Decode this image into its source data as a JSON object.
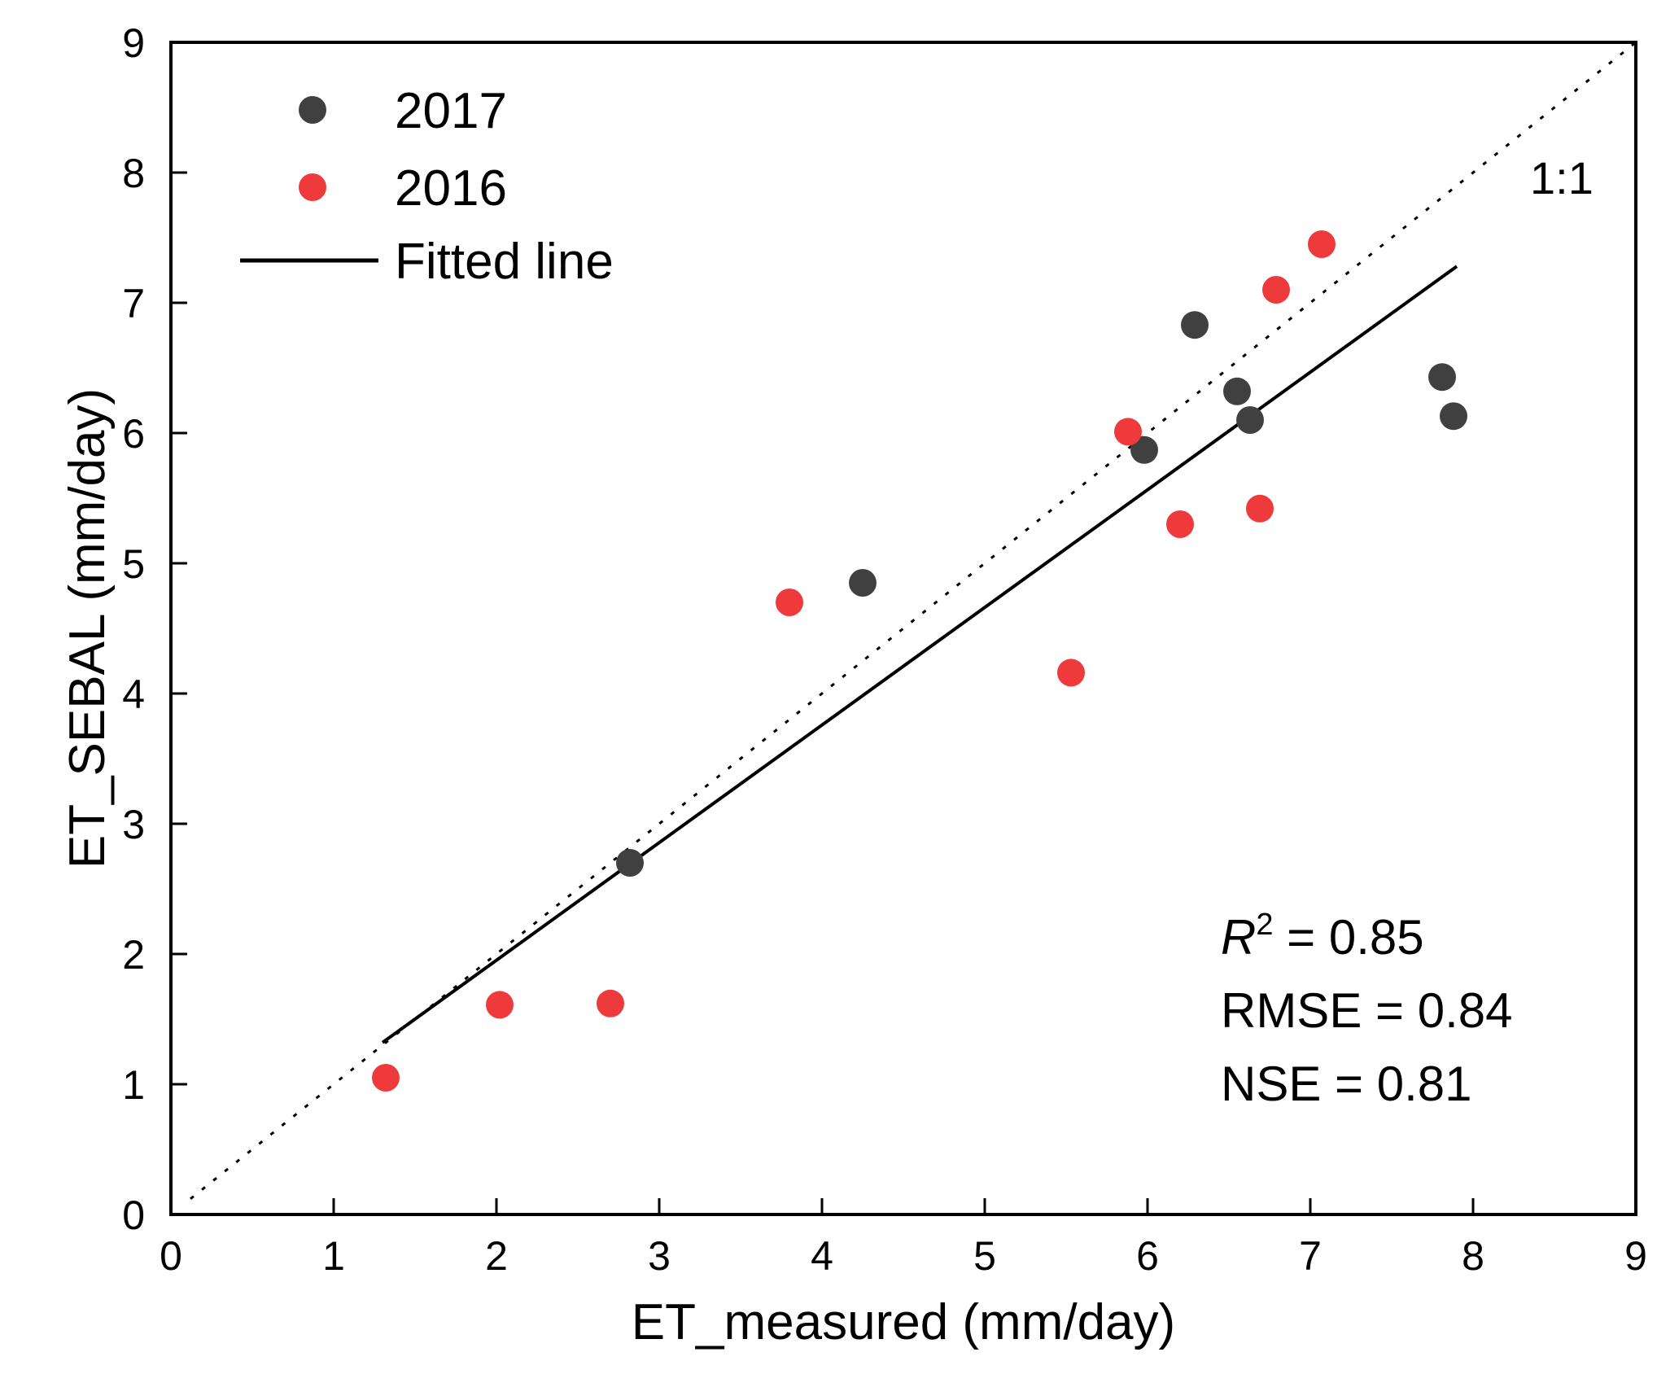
{
  "chart_data": {
    "type": "scatter",
    "title": "",
    "xlabel": "ET_measured (mm/day)",
    "ylabel": "ET_SEBAL (mm/day)",
    "xlim": [
      0,
      9
    ],
    "ylim": [
      0,
      9
    ],
    "xticks": [
      0,
      1,
      2,
      3,
      4,
      5,
      6,
      7,
      8,
      9
    ],
    "yticks": [
      0,
      1,
      2,
      3,
      4,
      5,
      6,
      7,
      8,
      9
    ],
    "grid": false,
    "legend_position": "top-left",
    "series": [
      {
        "name": "2017",
        "color": "#404040",
        "points": [
          {
            "x": 2.82,
            "y": 2.7
          },
          {
            "x": 4.25,
            "y": 4.85
          },
          {
            "x": 5.98,
            "y": 5.87
          },
          {
            "x": 6.29,
            "y": 6.83
          },
          {
            "x": 6.55,
            "y": 6.32
          },
          {
            "x": 6.63,
            "y": 6.1
          },
          {
            "x": 7.81,
            "y": 6.43
          },
          {
            "x": 7.88,
            "y": 6.13
          }
        ]
      },
      {
        "name": "2016",
        "color": "#ee3a3a",
        "points": [
          {
            "x": 1.32,
            "y": 1.05
          },
          {
            "x": 2.02,
            "y": 1.61
          },
          {
            "x": 2.7,
            "y": 1.62
          },
          {
            "x": 3.8,
            "y": 4.7
          },
          {
            "x": 5.53,
            "y": 4.16
          },
          {
            "x": 5.88,
            "y": 6.01
          },
          {
            "x": 6.2,
            "y": 5.3
          },
          {
            "x": 6.69,
            "y": 5.42
          },
          {
            "x": 6.79,
            "y": 7.1
          },
          {
            "x": 7.07,
            "y": 7.45
          }
        ]
      }
    ],
    "fitted_line": {
      "name": "Fitted line",
      "x": [
        1.3,
        7.9
      ],
      "y": [
        1.32,
        7.28
      ]
    },
    "reference_line": {
      "label": "1:1",
      "x": [
        0.12,
        9.0
      ],
      "y": [
        0.12,
        9.0
      ]
    },
    "stats": {
      "r2_symbol": "R",
      "r2_superscript": "2",
      "r2_value": " = 0.85",
      "rmse": "RMSE = 0.84",
      "nse": "NSE = 0.81"
    }
  }
}
